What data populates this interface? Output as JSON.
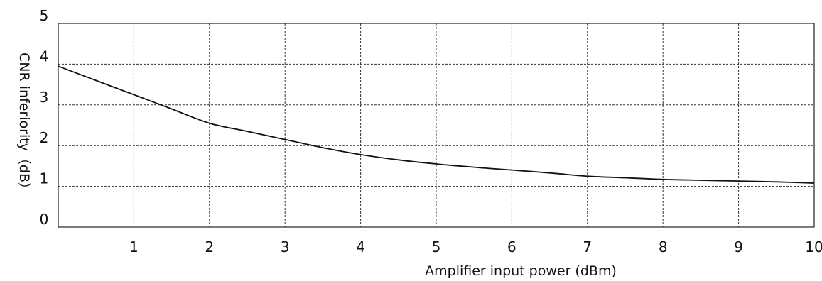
{
  "chart_data": {
    "type": "line",
    "title": "",
    "xlabel": "Amplifier input power (dBm)",
    "ylabel": "CNR inferiority（dB）",
    "xlim": [
      0,
      10
    ],
    "ylim": [
      0,
      5
    ],
    "x_ticks": [
      "1",
      "2",
      "3",
      "4",
      "5",
      "6",
      "7",
      "8",
      "9",
      "10"
    ],
    "y_ticks": [
      "0",
      "1",
      "2",
      "3",
      "4",
      "5"
    ],
    "grid": true,
    "series": [
      {
        "x": [
          0,
          0.5,
          1,
          1.5,
          2,
          2.5,
          3,
          3.5,
          4,
          4.5,
          5,
          5.5,
          6,
          6.5,
          7,
          7.5,
          8,
          8.5,
          9,
          9.5,
          10
        ],
        "y": [
          3.95,
          3.6,
          3.25,
          2.9,
          2.55,
          2.35,
          2.15,
          1.95,
          1.78,
          1.65,
          1.55,
          1.47,
          1.4,
          1.33,
          1.25,
          1.21,
          1.17,
          1.15,
          1.13,
          1.11,
          1.08
        ]
      }
    ]
  }
}
